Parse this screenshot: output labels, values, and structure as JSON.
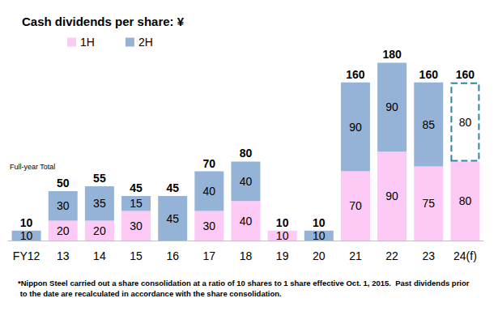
{
  "chart_data": {
    "type": "bar",
    "title": "Cash dividends per share: ¥",
    "categories": [
      "FY12",
      "13",
      "14",
      "15",
      "16",
      "17",
      "18",
      "19",
      "20",
      "21",
      "22",
      "23",
      "24(f)"
    ],
    "series": [
      {
        "name": "1H",
        "color": "#fdc9f5",
        "values": [
          null,
          20,
          20,
          30,
          null,
          30,
          40,
          10,
          null,
          70,
          90,
          75,
          80
        ]
      },
      {
        "name": "2H",
        "color": "#95b3d7",
        "colors": [
          "#95b3d7",
          "#95b3d7",
          "#95b3d7",
          "#95b3d7",
          "#95b3d7",
          "#95b3d7",
          "#95b3d7",
          "#95b3d7",
          "#95b3d7",
          "#95b3d7",
          "#95b3d7",
          "#95b3d7",
          "#ffffff"
        ],
        "values": [
          10,
          30,
          35,
          15,
          45,
          40,
          40,
          null,
          10,
          90,
          90,
          85,
          80
        ]
      }
    ],
    "totals": [
      10,
      50,
      55,
      45,
      45,
      70,
      80,
      10,
      10,
      160,
      180,
      160,
      160
    ],
    "totals_title": "Full-year Total",
    "note": "*Nippon Steel carried out a share consolidation at a ratio of 10 shares to 1 share effective Oct. 1, 2015.  Past dividends prior to the date are recalculated in accordance with the share consolidation.",
    "ylim": [
      0,
      200
    ],
    "stacked": true,
    "data_labels": true,
    "grid": false,
    "legend": "top-left",
    "tick_labels": "x"
  }
}
